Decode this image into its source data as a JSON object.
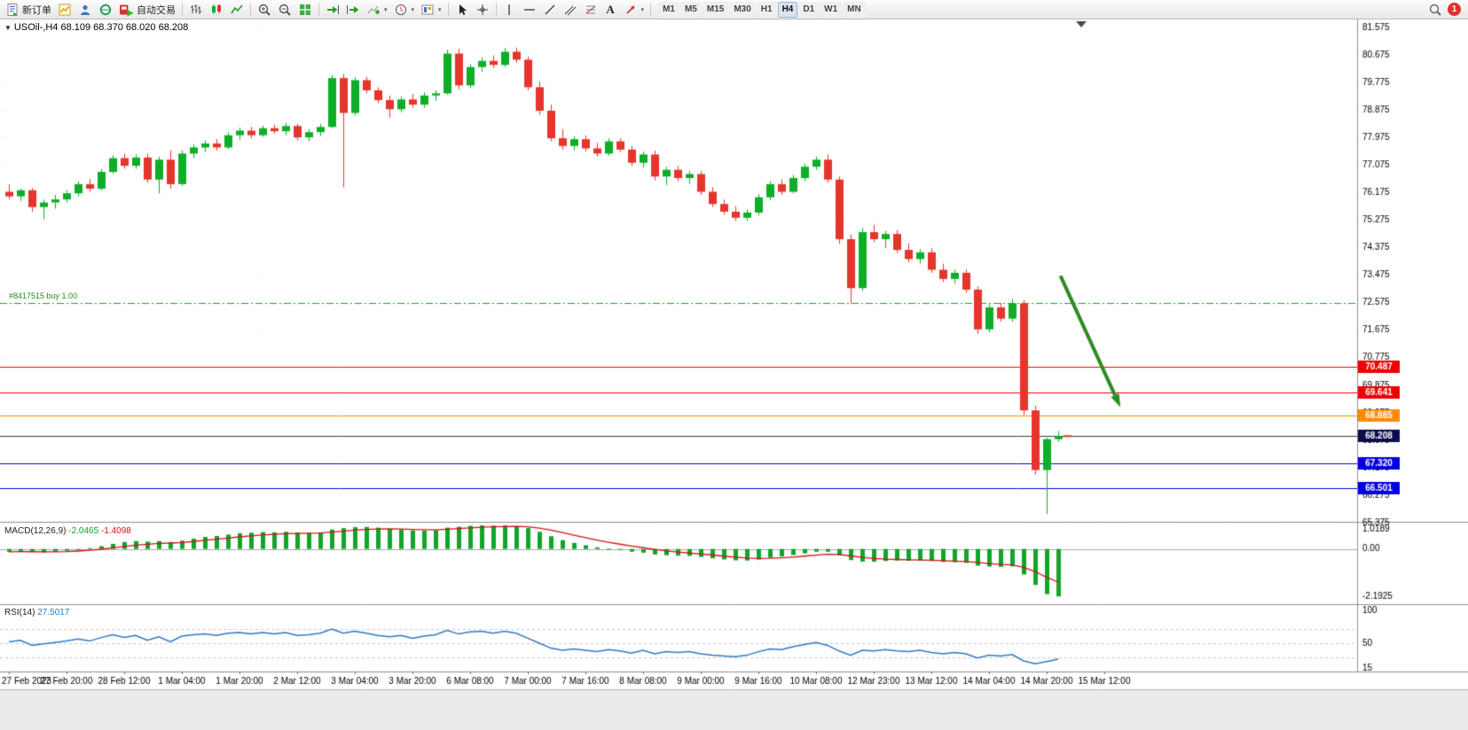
{
  "toolbar": {
    "new_order_label": "新订单",
    "autotrading_label": "自动交易",
    "text_tool_label": "A",
    "timeframes": [
      "M1",
      "M5",
      "M15",
      "M30",
      "H1",
      "H4",
      "D1",
      "W1",
      "MN"
    ],
    "active_timeframe": "H4",
    "notification_count": "1"
  },
  "chart": {
    "symbol_info": "USOil-,H4  68.109 68.370 68.020 68.208"
  },
  "colors": {
    "candle_up": "#0EAE28",
    "candle_down": "#E5352C",
    "macd_histogram": "#12A42B",
    "macd_signal": "#D01414",
    "rsi_line": "#3079C0",
    "position_line": "#22A022",
    "current_price_line": "#3A3A3A",
    "current_price_badge": "#0D0D4D",
    "annotation_arrow": "#2E8B22"
  },
  "chart_data": {
    "type": "candlestick",
    "symbol": "USOil-",
    "timeframe": "H4",
    "ohlc_current": {
      "open": "68.109",
      "high": "68.370",
      "low": "68.020",
      "close": "68.208"
    },
    "current_price": 68.208,
    "price_axis": {
      "labels": [
        "81.575",
        "80.675",
        "79.775",
        "78.875",
        "77.975",
        "77.075",
        "76.175",
        "75.275",
        "74.375",
        "73.475",
        "72.575",
        "71.675",
        "70.775",
        "69.875",
        "68.975",
        "68.075",
        "67.175",
        "66.275",
        "65.375"
      ]
    },
    "time_axis": {
      "bars_per_label": 5,
      "labels": [
        "27 Feb 2023",
        "27 Feb 20:00",
        "28 Feb 12:00",
        "1 Mar 04:00",
        "1 Mar 20:00",
        "2 Mar 12:00",
        "3 Mar 04:00",
        "3 Mar 20:00",
        "6 Mar 08:00",
        "7 Mar 00:00",
        "7 Mar 16:00",
        "8 Mar 08:00",
        "9 Mar 00:00",
        "9 Mar 16:00",
        "10 Mar 08:00",
        "12 Mar 23:00",
        "13 Mar 12:00",
        "14 Mar 04:00",
        "14 Mar 20:00",
        "15 Mar 12:00"
      ]
    },
    "hlines": [
      {
        "price": 70.487,
        "label": "70.487",
        "color": "#EE0000"
      },
      {
        "price": 69.641,
        "label": "69.641",
        "color": "#EE0000"
      },
      {
        "price": 68.885,
        "label": "68.885",
        "color": "#FF8A00"
      },
      {
        "price": 67.32,
        "label": "67.320",
        "color": "#0000E0"
      },
      {
        "price": 66.501,
        "label": "66.501",
        "color": "#0000E0"
      }
    ],
    "position_line": {
      "price": 72.575,
      "label": "#8417515 buy 1.00"
    },
    "arrow": {
      "from": {
        "index": 91.2,
        "price": 73.45
      },
      "to": {
        "index": 96.4,
        "price": 69.15
      }
    },
    "shift_marker_index": 93,
    "candles": [
      [
        76.2,
        76.45,
        75.95,
        76.05
      ],
      [
        76.05,
        76.3,
        75.9,
        76.25
      ],
      [
        76.25,
        76.32,
        75.55,
        75.7
      ],
      [
        75.7,
        75.95,
        75.3,
        75.85
      ],
      [
        75.85,
        76.1,
        75.65,
        75.95
      ],
      [
        75.95,
        76.25,
        75.85,
        76.15
      ],
      [
        76.15,
        76.55,
        76.05,
        76.45
      ],
      [
        76.45,
        76.62,
        76.2,
        76.3
      ],
      [
        76.3,
        76.95,
        76.25,
        76.85
      ],
      [
        76.85,
        77.4,
        76.8,
        77.3
      ],
      [
        77.3,
        77.45,
        76.95,
        77.05
      ],
      [
        77.05,
        77.42,
        76.95,
        77.32
      ],
      [
        77.32,
        77.45,
        76.5,
        76.6
      ],
      [
        76.6,
        77.35,
        76.15,
        77.25
      ],
      [
        77.25,
        77.55,
        76.3,
        76.45
      ],
      [
        76.45,
        77.55,
        76.4,
        77.45
      ],
      [
        77.45,
        77.75,
        77.3,
        77.65
      ],
      [
        77.65,
        77.88,
        77.5,
        77.78
      ],
      [
        77.78,
        77.92,
        77.55,
        77.65
      ],
      [
        77.65,
        78.15,
        77.6,
        78.05
      ],
      [
        78.05,
        78.3,
        77.9,
        78.2
      ],
      [
        78.2,
        78.32,
        77.95,
        78.05
      ],
      [
        78.05,
        78.36,
        78.0,
        78.28
      ],
      [
        78.28,
        78.4,
        78.1,
        78.18
      ],
      [
        78.18,
        78.45,
        78.05,
        78.35
      ],
      [
        78.35,
        78.42,
        77.88,
        77.98
      ],
      [
        77.98,
        78.25,
        77.85,
        78.15
      ],
      [
        78.15,
        78.42,
        78.02,
        78.32
      ],
      [
        78.32,
        80.02,
        78.28,
        79.92
      ],
      [
        79.92,
        80.06,
        76.35,
        78.78
      ],
      [
        78.78,
        79.95,
        78.7,
        79.85
      ],
      [
        79.85,
        79.96,
        79.42,
        79.52
      ],
      [
        79.52,
        79.62,
        79.1,
        79.2
      ],
      [
        79.2,
        79.35,
        78.62,
        78.9
      ],
      [
        78.9,
        79.32,
        78.8,
        79.22
      ],
      [
        79.22,
        79.4,
        78.95,
        79.05
      ],
      [
        79.05,
        79.45,
        78.95,
        79.35
      ],
      [
        79.35,
        79.52,
        79.18,
        79.42
      ],
      [
        79.42,
        80.85,
        79.38,
        80.72
      ],
      [
        80.72,
        80.88,
        79.55,
        79.68
      ],
      [
        79.68,
        80.38,
        79.6,
        80.28
      ],
      [
        80.28,
        80.6,
        80.12,
        80.48
      ],
      [
        80.48,
        80.66,
        80.25,
        80.35
      ],
      [
        80.35,
        80.9,
        80.28,
        80.78
      ],
      [
        80.78,
        80.92,
        80.42,
        80.52
      ],
      [
        80.52,
        80.62,
        79.52,
        79.62
      ],
      [
        79.62,
        79.8,
        78.72,
        78.85
      ],
      [
        78.85,
        79.05,
        77.85,
        77.95
      ],
      [
        77.95,
        78.25,
        77.58,
        77.7
      ],
      [
        77.7,
        78.02,
        77.55,
        77.92
      ],
      [
        77.92,
        78.05,
        77.52,
        77.62
      ],
      [
        77.62,
        77.8,
        77.35,
        77.45
      ],
      [
        77.45,
        77.95,
        77.38,
        77.85
      ],
      [
        77.85,
        77.95,
        77.5,
        77.58
      ],
      [
        77.58,
        77.7,
        77.05,
        77.15
      ],
      [
        77.15,
        77.52,
        77.0,
        77.42
      ],
      [
        77.42,
        77.55,
        76.58,
        76.7
      ],
      [
        76.7,
        77.02,
        76.42,
        76.92
      ],
      [
        76.92,
        77.05,
        76.55,
        76.65
      ],
      [
        76.65,
        76.88,
        76.45,
        76.78
      ],
      [
        76.78,
        76.88,
        76.1,
        76.2
      ],
      [
        76.2,
        76.35,
        75.7,
        75.8
      ],
      [
        75.8,
        75.95,
        75.45,
        75.55
      ],
      [
        75.55,
        75.72,
        75.25,
        75.35
      ],
      [
        75.35,
        75.62,
        75.25,
        75.52
      ],
      [
        75.52,
        76.12,
        75.42,
        76.02
      ],
      [
        76.02,
        76.55,
        75.92,
        76.45
      ],
      [
        76.45,
        76.6,
        76.1,
        76.2
      ],
      [
        76.2,
        76.75,
        76.15,
        76.65
      ],
      [
        76.65,
        77.12,
        76.55,
        77.02
      ],
      [
        77.02,
        77.35,
        76.92,
        77.25
      ],
      [
        77.25,
        77.42,
        76.5,
        76.6
      ],
      [
        76.6,
        76.7,
        74.5,
        74.65
      ],
      [
        74.65,
        74.8,
        72.55,
        73.05
      ],
      [
        73.05,
        75.02,
        72.95,
        74.88
      ],
      [
        74.88,
        75.12,
        74.55,
        74.65
      ],
      [
        74.65,
        74.92,
        74.35,
        74.82
      ],
      [
        74.82,
        74.95,
        74.2,
        74.3
      ],
      [
        74.3,
        74.52,
        73.9,
        74.0
      ],
      [
        74.0,
        74.32,
        73.85,
        74.22
      ],
      [
        74.22,
        74.35,
        73.55,
        73.65
      ],
      [
        73.65,
        73.85,
        73.25,
        73.35
      ],
      [
        73.35,
        73.65,
        73.2,
        73.55
      ],
      [
        73.55,
        73.66,
        72.9,
        73.0
      ],
      [
        73.0,
        73.1,
        71.55,
        71.7
      ],
      [
        71.7,
        72.52,
        71.6,
        72.42
      ],
      [
        72.42,
        72.56,
        71.95,
        72.05
      ],
      [
        72.05,
        72.7,
        71.95,
        72.55
      ],
      [
        72.55,
        72.66,
        68.9,
        69.05
      ],
      [
        69.05,
        69.2,
        66.95,
        67.1
      ],
      [
        67.1,
        68.15,
        65.66,
        68.11
      ],
      [
        68.109,
        68.37,
        68.02,
        68.208
      ]
    ],
    "macd": {
      "name": "MACD(12,26,9)",
      "value_main": "-2.0465",
      "value_signal": "-1.4098",
      "axis_labels": [
        "1.0189",
        "0.00",
        "-2.1925"
      ],
      "range": [
        -2.1925,
        1.0189
      ],
      "values": [
        -0.12,
        -0.1,
        -0.13,
        -0.15,
        -0.12,
        -0.08,
        -0.02,
        0.04,
        0.12,
        0.22,
        0.3,
        0.34,
        0.32,
        0.34,
        0.3,
        0.36,
        0.44,
        0.52,
        0.56,
        0.62,
        0.68,
        0.7,
        0.73,
        0.72,
        0.74,
        0.71,
        0.69,
        0.71,
        0.84,
        0.9,
        0.94,
        0.95,
        0.92,
        0.87,
        0.84,
        0.8,
        0.79,
        0.81,
        0.92,
        0.96,
        1.0,
        1.0189,
        1.01,
        1.015,
        0.99,
        0.9,
        0.74,
        0.55,
        0.38,
        0.26,
        0.16,
        0.07,
        0.01,
        -0.04,
        -0.12,
        -0.16,
        -0.24,
        -0.27,
        -0.29,
        -0.3,
        -0.34,
        -0.4,
        -0.45,
        -0.49,
        -0.5,
        -0.46,
        -0.38,
        -0.32,
        -0.26,
        -0.19,
        -0.12,
        -0.12,
        -0.28,
        -0.48,
        -0.55,
        -0.55,
        -0.52,
        -0.5,
        -0.51,
        -0.5,
        -0.52,
        -0.56,
        -0.57,
        -0.6,
        -0.72,
        -0.76,
        -0.77,
        -0.75,
        -1.1,
        -1.55,
        -1.95,
        -2.0465
      ]
    },
    "rsi": {
      "name": "RSI(14)",
      "value": "27.5017",
      "axis_labels": [
        "100",
        "50",
        "15"
      ],
      "range": [
        15,
        100
      ],
      "levels": [
        70,
        50,
        30
      ],
      "values": [
        52,
        54,
        47,
        49,
        51,
        53,
        56,
        53,
        58,
        62,
        58,
        61,
        54,
        59,
        52,
        60,
        62,
        63,
        61,
        64,
        65,
        63,
        65,
        63,
        65,
        61,
        62,
        64,
        70,
        64,
        67,
        64,
        61,
        59,
        61,
        57,
        60,
        62,
        68,
        63,
        66,
        67,
        64,
        67,
        64,
        57,
        50,
        43,
        40,
        42,
        40,
        38,
        41,
        39,
        36,
        40,
        35,
        38,
        37,
        38,
        35,
        33,
        32,
        31,
        33,
        38,
        42,
        41,
        45,
        48,
        51,
        47,
        39,
        33,
        40,
        39,
        41,
        39,
        38,
        40,
        37,
        35,
        37,
        35,
        29,
        33,
        32,
        34,
        25,
        21,
        24,
        27.5
      ]
    }
  }
}
